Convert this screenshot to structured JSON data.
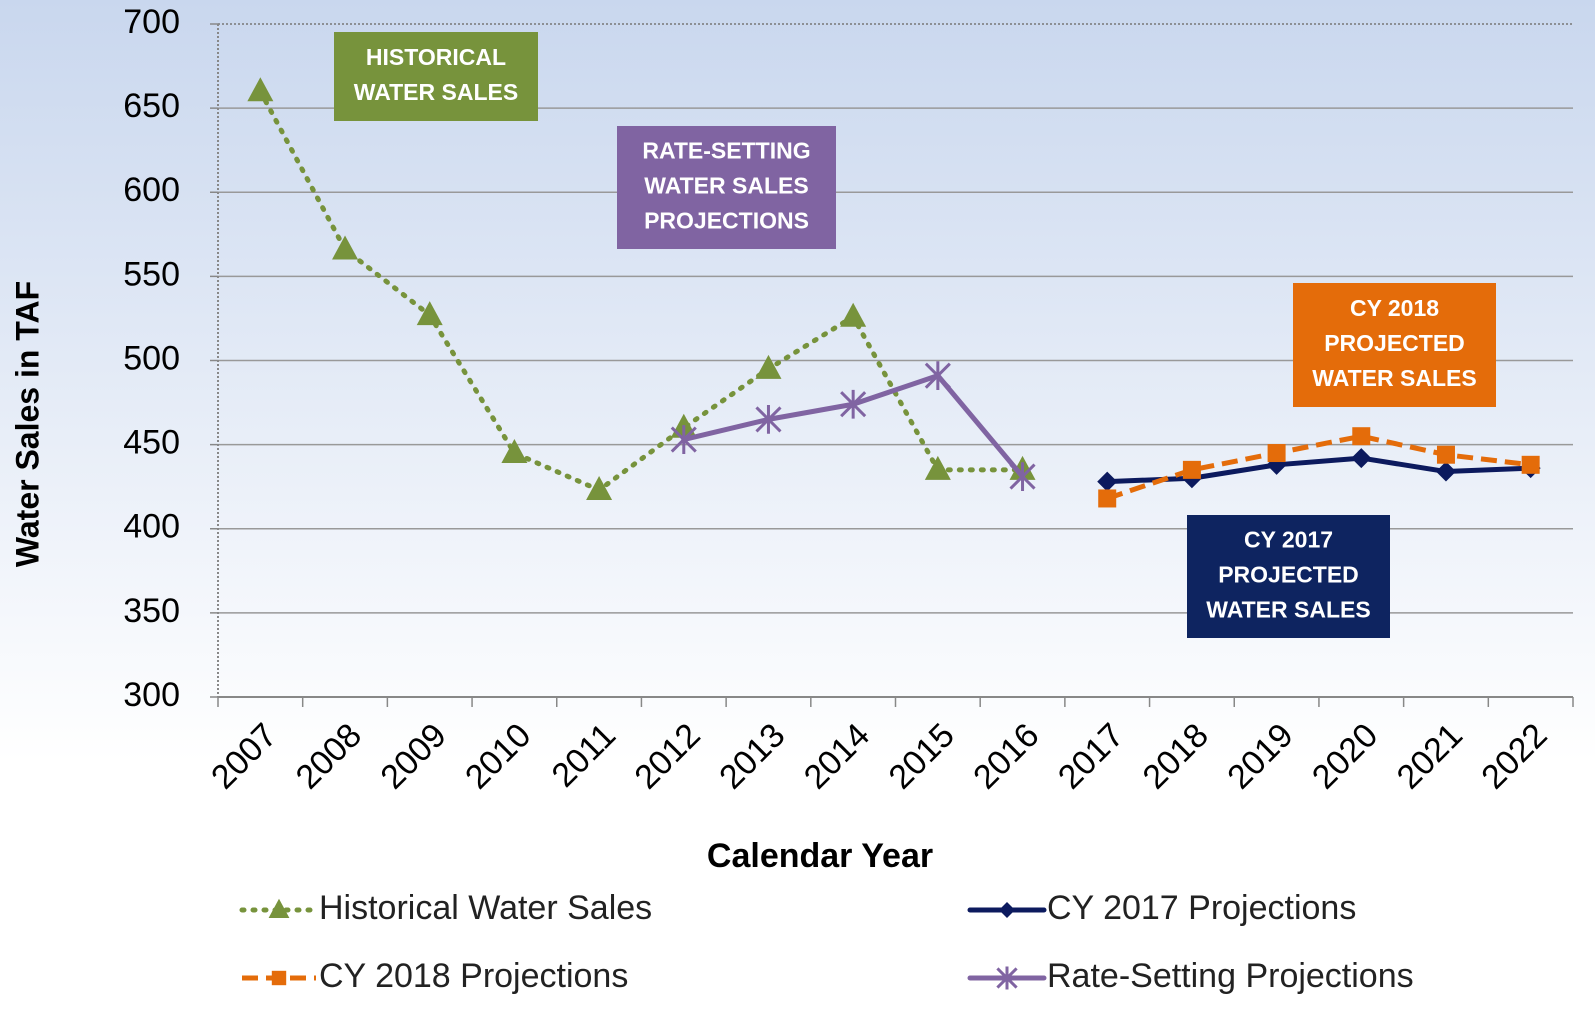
{
  "chart_data": {
    "type": "line",
    "x_label": "Calendar Year",
    "y_label": "Water Sales in TAF",
    "categories": [
      "2007",
      "2008",
      "2009",
      "2010",
      "2011",
      "2012",
      "2013",
      "2014",
      "2015",
      "2016",
      "2017",
      "2018",
      "2019",
      "2020",
      "2021",
      "2022"
    ],
    "ylim": [
      300,
      700
    ],
    "yticks": [
      300,
      350,
      400,
      450,
      500,
      550,
      600,
      650,
      700
    ],
    "grid": true,
    "series": [
      {
        "name": "Historical Water Sales",
        "color": "#77933c",
        "line_style": "dotted",
        "marker": "triangle",
        "values": [
          660,
          566,
          527,
          445,
          423,
          460,
          495,
          526,
          435,
          435,
          null,
          null,
          null,
          null,
          null,
          null
        ]
      },
      {
        "name": "CY 2017 Projections",
        "color": "#0c1a5e",
        "line_style": "solid",
        "marker": "diamond",
        "values": [
          null,
          null,
          null,
          null,
          null,
          null,
          null,
          null,
          null,
          null,
          428,
          430,
          438,
          442,
          434,
          436
        ]
      },
      {
        "name": "CY 2018 Projections",
        "color": "#e46c0a",
        "line_style": "dashed",
        "marker": "square",
        "values": [
          null,
          null,
          null,
          null,
          null,
          null,
          null,
          null,
          null,
          null,
          418,
          435,
          445,
          455,
          444,
          438
        ]
      },
      {
        "name": "Rate-Setting Projections",
        "color": "#8064a2",
        "line_style": "solid",
        "marker": "asterisk",
        "values": [
          null,
          null,
          null,
          null,
          null,
          453,
          465,
          474,
          491,
          431,
          null,
          null,
          null,
          null,
          null,
          null
        ]
      }
    ],
    "annotations": [
      {
        "lines": [
          "HISTORICAL",
          "WATER SALES"
        ],
        "color": "#77933c"
      },
      {
        "lines": [
          "RATE-SETTING",
          "WATER SALES",
          "PROJECTIONS"
        ],
        "color": "#8064a2"
      },
      {
        "lines": [
          "CY 2018",
          "PROJECTED",
          "WATER SALES"
        ],
        "color": "#e46c0a"
      },
      {
        "lines": [
          "CY 2017",
          "PROJECTED",
          "WATER SALES"
        ],
        "color": "#0e2460"
      }
    ]
  }
}
